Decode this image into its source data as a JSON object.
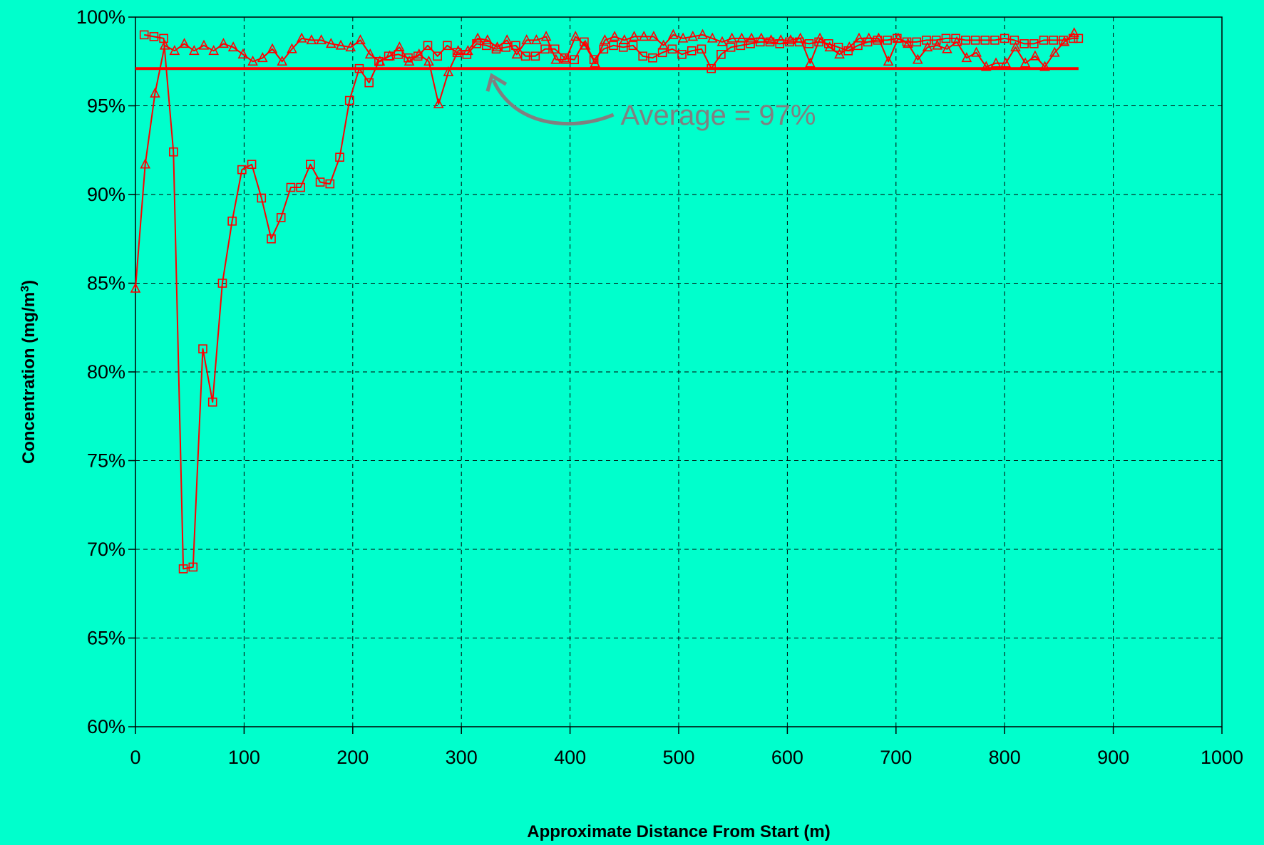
{
  "chart_data": {
    "type": "line",
    "title": "",
    "xlabel": "Approximate Distance From Start (m)",
    "ylabel_main": "Concentration (mg/m",
    "ylabel_sup": "3",
    "ylabel_close": ")",
    "xlim": [
      0,
      1000
    ],
    "ylim": [
      0.6,
      1.0
    ],
    "x_ticks": [
      0,
      100,
      200,
      300,
      400,
      500,
      600,
      700,
      800,
      900,
      1000
    ],
    "y_ticks": [
      0.6,
      0.65,
      0.7,
      0.75,
      0.8,
      0.85,
      0.9,
      0.95,
      1.0
    ],
    "x_tick_labels": [
      "0",
      "100",
      "200",
      "300",
      "400",
      "500",
      "600",
      "700",
      "800",
      "900",
      "1000"
    ],
    "y_tick_labels": [
      "60%",
      "65%",
      "70%",
      "75%",
      "80%",
      "85%",
      "90%",
      "95%",
      "100%"
    ],
    "grid": true,
    "line_color": "#FF0000",
    "average": {
      "value": 0.971,
      "x_range": [
        0,
        868
      ],
      "label": "Average = 97%"
    },
    "annotation_color": "#808080",
    "series": [
      {
        "marker": "square",
        "x": [
          8,
          17,
          26,
          35,
          44,
          53,
          62,
          71,
          80,
          89,
          98,
          107,
          116,
          125,
          134,
          143,
          152,
          161,
          170,
          179,
          188,
          197,
          206,
          215,
          224,
          233,
          242,
          251,
          260,
          269,
          278,
          287,
          296,
          305,
          314,
          323,
          332,
          341,
          350,
          359,
          368,
          377,
          386,
          395,
          404,
          413,
          422,
          431,
          440,
          449,
          458,
          467,
          476,
          485,
          494,
          503,
          512,
          521,
          530,
          539,
          548,
          557,
          566,
          575,
          584,
          593,
          602,
          611,
          620,
          629,
          638,
          647,
          656,
          665,
          674,
          683,
          692,
          701,
          710,
          719,
          728,
          737,
          746,
          755,
          764,
          773,
          782,
          791,
          800,
          809,
          818,
          827,
          836,
          845,
          854,
          863,
          868
        ],
        "y": [
          0.99,
          0.989,
          0.988,
          0.924,
          0.689,
          0.69,
          0.813,
          0.783,
          0.85,
          0.885,
          0.914,
          0.917,
          0.898,
          0.875,
          0.887,
          0.904,
          0.904,
          0.917,
          0.907,
          0.906,
          0.921,
          0.953,
          0.971,
          0.963,
          0.975,
          0.978,
          0.979,
          0.977,
          0.978,
          0.984,
          0.978,
          0.984,
          0.98,
          0.979,
          0.985,
          0.984,
          0.982,
          0.983,
          0.984,
          0.978,
          0.978,
          0.982,
          0.982,
          0.977,
          0.976,
          0.986,
          0.976,
          0.982,
          0.984,
          0.983,
          0.984,
          0.978,
          0.977,
          0.98,
          0.982,
          0.979,
          0.981,
          0.982,
          0.971,
          0.979,
          0.983,
          0.984,
          0.985,
          0.986,
          0.986,
          0.985,
          0.986,
          0.986,
          0.985,
          0.986,
          0.985,
          0.983,
          0.981,
          0.984,
          0.986,
          0.987,
          0.987,
          0.988,
          0.986,
          0.986,
          0.987,
          0.987,
          0.988,
          0.988,
          0.987,
          0.987,
          0.987,
          0.987,
          0.988,
          0.987,
          0.985,
          0.985,
          0.987,
          0.987,
          0.987,
          0.988,
          0.988
        ]
      },
      {
        "marker": "triangle",
        "x": [
          0,
          9,
          18,
          27,
          36,
          45,
          54,
          63,
          72,
          81,
          90,
          99,
          108,
          117,
          126,
          135,
          144,
          153,
          162,
          171,
          180,
          189,
          198,
          207,
          216,
          225,
          234,
          243,
          252,
          261,
          270,
          279,
          288,
          297,
          306,
          315,
          324,
          333,
          342,
          351,
          360,
          369,
          378,
          387,
          396,
          405,
          414,
          423,
          432,
          441,
          450,
          459,
          468,
          477,
          486,
          495,
          504,
          513,
          522,
          531,
          540,
          549,
          558,
          567,
          576,
          585,
          594,
          603,
          612,
          621,
          630,
          639,
          648,
          657,
          666,
          675,
          684,
          693,
          702,
          711,
          720,
          729,
          738,
          747,
          756,
          765,
          774,
          783,
          792,
          801,
          810,
          819,
          828,
          837,
          846,
          855,
          864
        ],
        "y": [
          0.847,
          0.917,
          0.957,
          0.984,
          0.981,
          0.985,
          0.981,
          0.984,
          0.981,
          0.985,
          0.983,
          0.979,
          0.975,
          0.977,
          0.982,
          0.975,
          0.982,
          0.988,
          0.987,
          0.987,
          0.985,
          0.984,
          0.983,
          0.987,
          0.979,
          0.975,
          0.978,
          0.983,
          0.975,
          0.979,
          0.975,
          0.951,
          0.969,
          0.981,
          0.981,
          0.988,
          0.987,
          0.983,
          0.987,
          0.979,
          0.987,
          0.987,
          0.989,
          0.976,
          0.976,
          0.989,
          0.984,
          0.974,
          0.987,
          0.989,
          0.987,
          0.989,
          0.989,
          0.989,
          0.984,
          0.99,
          0.988,
          0.989,
          0.99,
          0.988,
          0.986,
          0.988,
          0.988,
          0.988,
          0.988,
          0.987,
          0.987,
          0.987,
          0.988,
          0.974,
          0.988,
          0.983,
          0.979,
          0.983,
          0.988,
          0.988,
          0.988,
          0.975,
          0.988,
          0.985,
          0.976,
          0.983,
          0.984,
          0.982,
          0.986,
          0.977,
          0.98,
          0.972,
          0.974,
          0.974,
          0.983,
          0.974,
          0.978,
          0.972,
          0.98,
          0.986,
          0.991
        ]
      }
    ]
  }
}
